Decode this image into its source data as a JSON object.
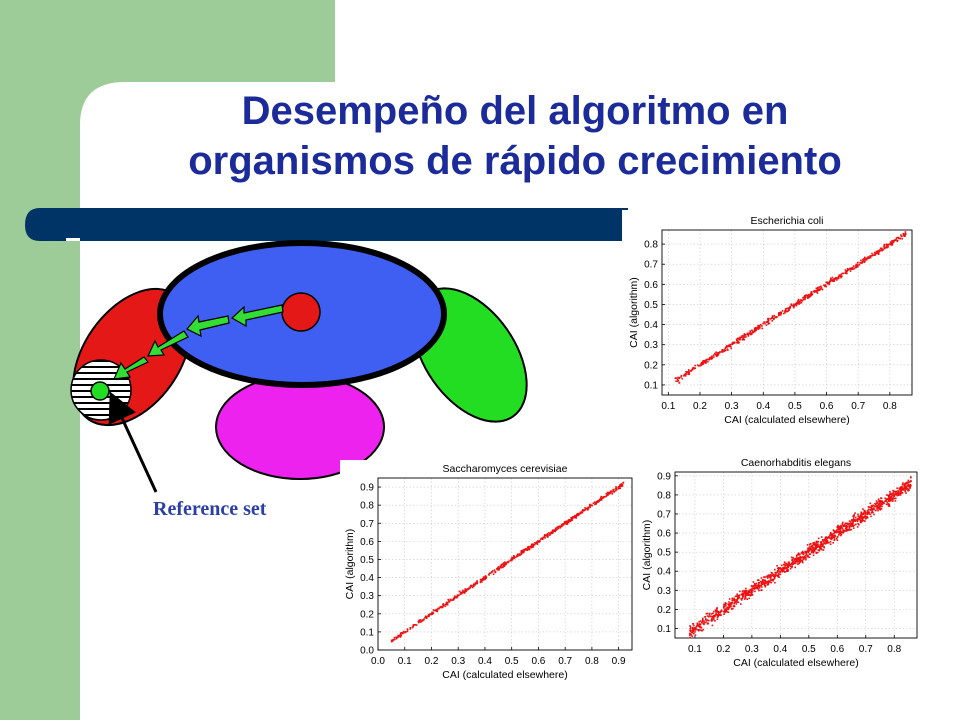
{
  "slide": {
    "title_line1": "Desempeño del algoritmo en",
    "title_line2": "organismos de rápido crecimiento",
    "reference_label": "Reference set",
    "colors": {
      "sidebar": "#9ecc98",
      "title_bar": "#003366",
      "title_text": "#1b2b9a",
      "blue_ellipse": "#3f5ff2",
      "red_ellipse": "#e51818",
      "green_ellipse": "#22dd22",
      "magenta_ellipse": "#ee22ee",
      "arrow_green": "#33dd33",
      "plot_points": "#ee1111"
    }
  },
  "chart_data": [
    {
      "type": "scatter",
      "title": "Escherichia coli",
      "xlabel": "CAI (calculated elsewhere)",
      "ylabel": "CAI (algorithm)",
      "xlim": [
        0.08,
        0.87
      ],
      "ylim": [
        0.05,
        0.87
      ],
      "xticks": [
        0.1,
        0.2,
        0.3,
        0.4,
        0.5,
        0.6,
        0.7,
        0.8
      ],
      "yticks": [
        0.1,
        0.2,
        0.3,
        0.4,
        0.5,
        0.6,
        0.7,
        0.8
      ],
      "tick_labels_x": [
        "0.1",
        "0.2",
        "0.3",
        "0.4",
        "0.5",
        "0.6",
        "0.7",
        "0.8"
      ],
      "tick_labels_y": [
        "0.1",
        "0.2",
        "0.3",
        "0.4",
        "0.5",
        "0.6",
        "0.7",
        "0.8"
      ],
      "grid": true,
      "series": [
        {
          "x_range": [
            0.12,
            0.85
          ],
          "relation": "y ≈ x",
          "spread": 0.008,
          "approx_points": 1200
        }
      ]
    },
    {
      "type": "scatter",
      "title": "Saccharomyces cerevisiae",
      "xlabel": "CAI (calculated elsewhere)",
      "ylabel": "CAI (algorithm)",
      "xlim": [
        0.0,
        0.95
      ],
      "ylim": [
        0.0,
        0.95
      ],
      "xticks": [
        0.0,
        0.1,
        0.2,
        0.3,
        0.4,
        0.5,
        0.6,
        0.7,
        0.8,
        0.9
      ],
      "yticks": [
        0.0,
        0.1,
        0.2,
        0.3,
        0.4,
        0.5,
        0.6,
        0.7,
        0.8,
        0.9
      ],
      "tick_labels_x": [
        "0.0",
        "0.1",
        "0.2",
        "0.3",
        "0.4",
        "0.5",
        "0.6",
        "0.7",
        "0.8",
        "0.9"
      ],
      "tick_labels_y": [
        "0.0",
        "0.1",
        "0.2",
        "0.3",
        "0.4",
        "0.5",
        "0.6",
        "0.7",
        "0.8",
        "0.9"
      ],
      "grid": true,
      "series": [
        {
          "x_range": [
            0.05,
            0.92
          ],
          "relation": "y ≈ x",
          "spread": 0.006,
          "approx_points": 1200
        }
      ]
    },
    {
      "type": "scatter",
      "title": "Caenorhabditis elegans",
      "xlabel": "CAI (calculated elsewhere)",
      "ylabel": "CAI (algorithm)",
      "xlim": [
        0.03,
        0.88
      ],
      "ylim": [
        0.05,
        0.92
      ],
      "xticks": [
        0.1,
        0.2,
        0.3,
        0.4,
        0.5,
        0.6,
        0.7,
        0.8
      ],
      "yticks": [
        0.1,
        0.2,
        0.3,
        0.4,
        0.5,
        0.6,
        0.7,
        0.8,
        0.9
      ],
      "tick_labels_x": [
        "0.1",
        "0.2",
        "0.3",
        "0.4",
        "0.5",
        "0.6",
        "0.7",
        "0.8"
      ],
      "tick_labels_y": [
        "0.1",
        "0.2",
        "0.3",
        "0.4",
        "0.5",
        "0.6",
        "0.7",
        "0.8",
        "0.9"
      ],
      "grid": true,
      "series": [
        {
          "x_range": [
            0.08,
            0.86
          ],
          "relation": "y ≈ x",
          "spread": 0.02,
          "approx_points": 2500
        }
      ]
    }
  ]
}
